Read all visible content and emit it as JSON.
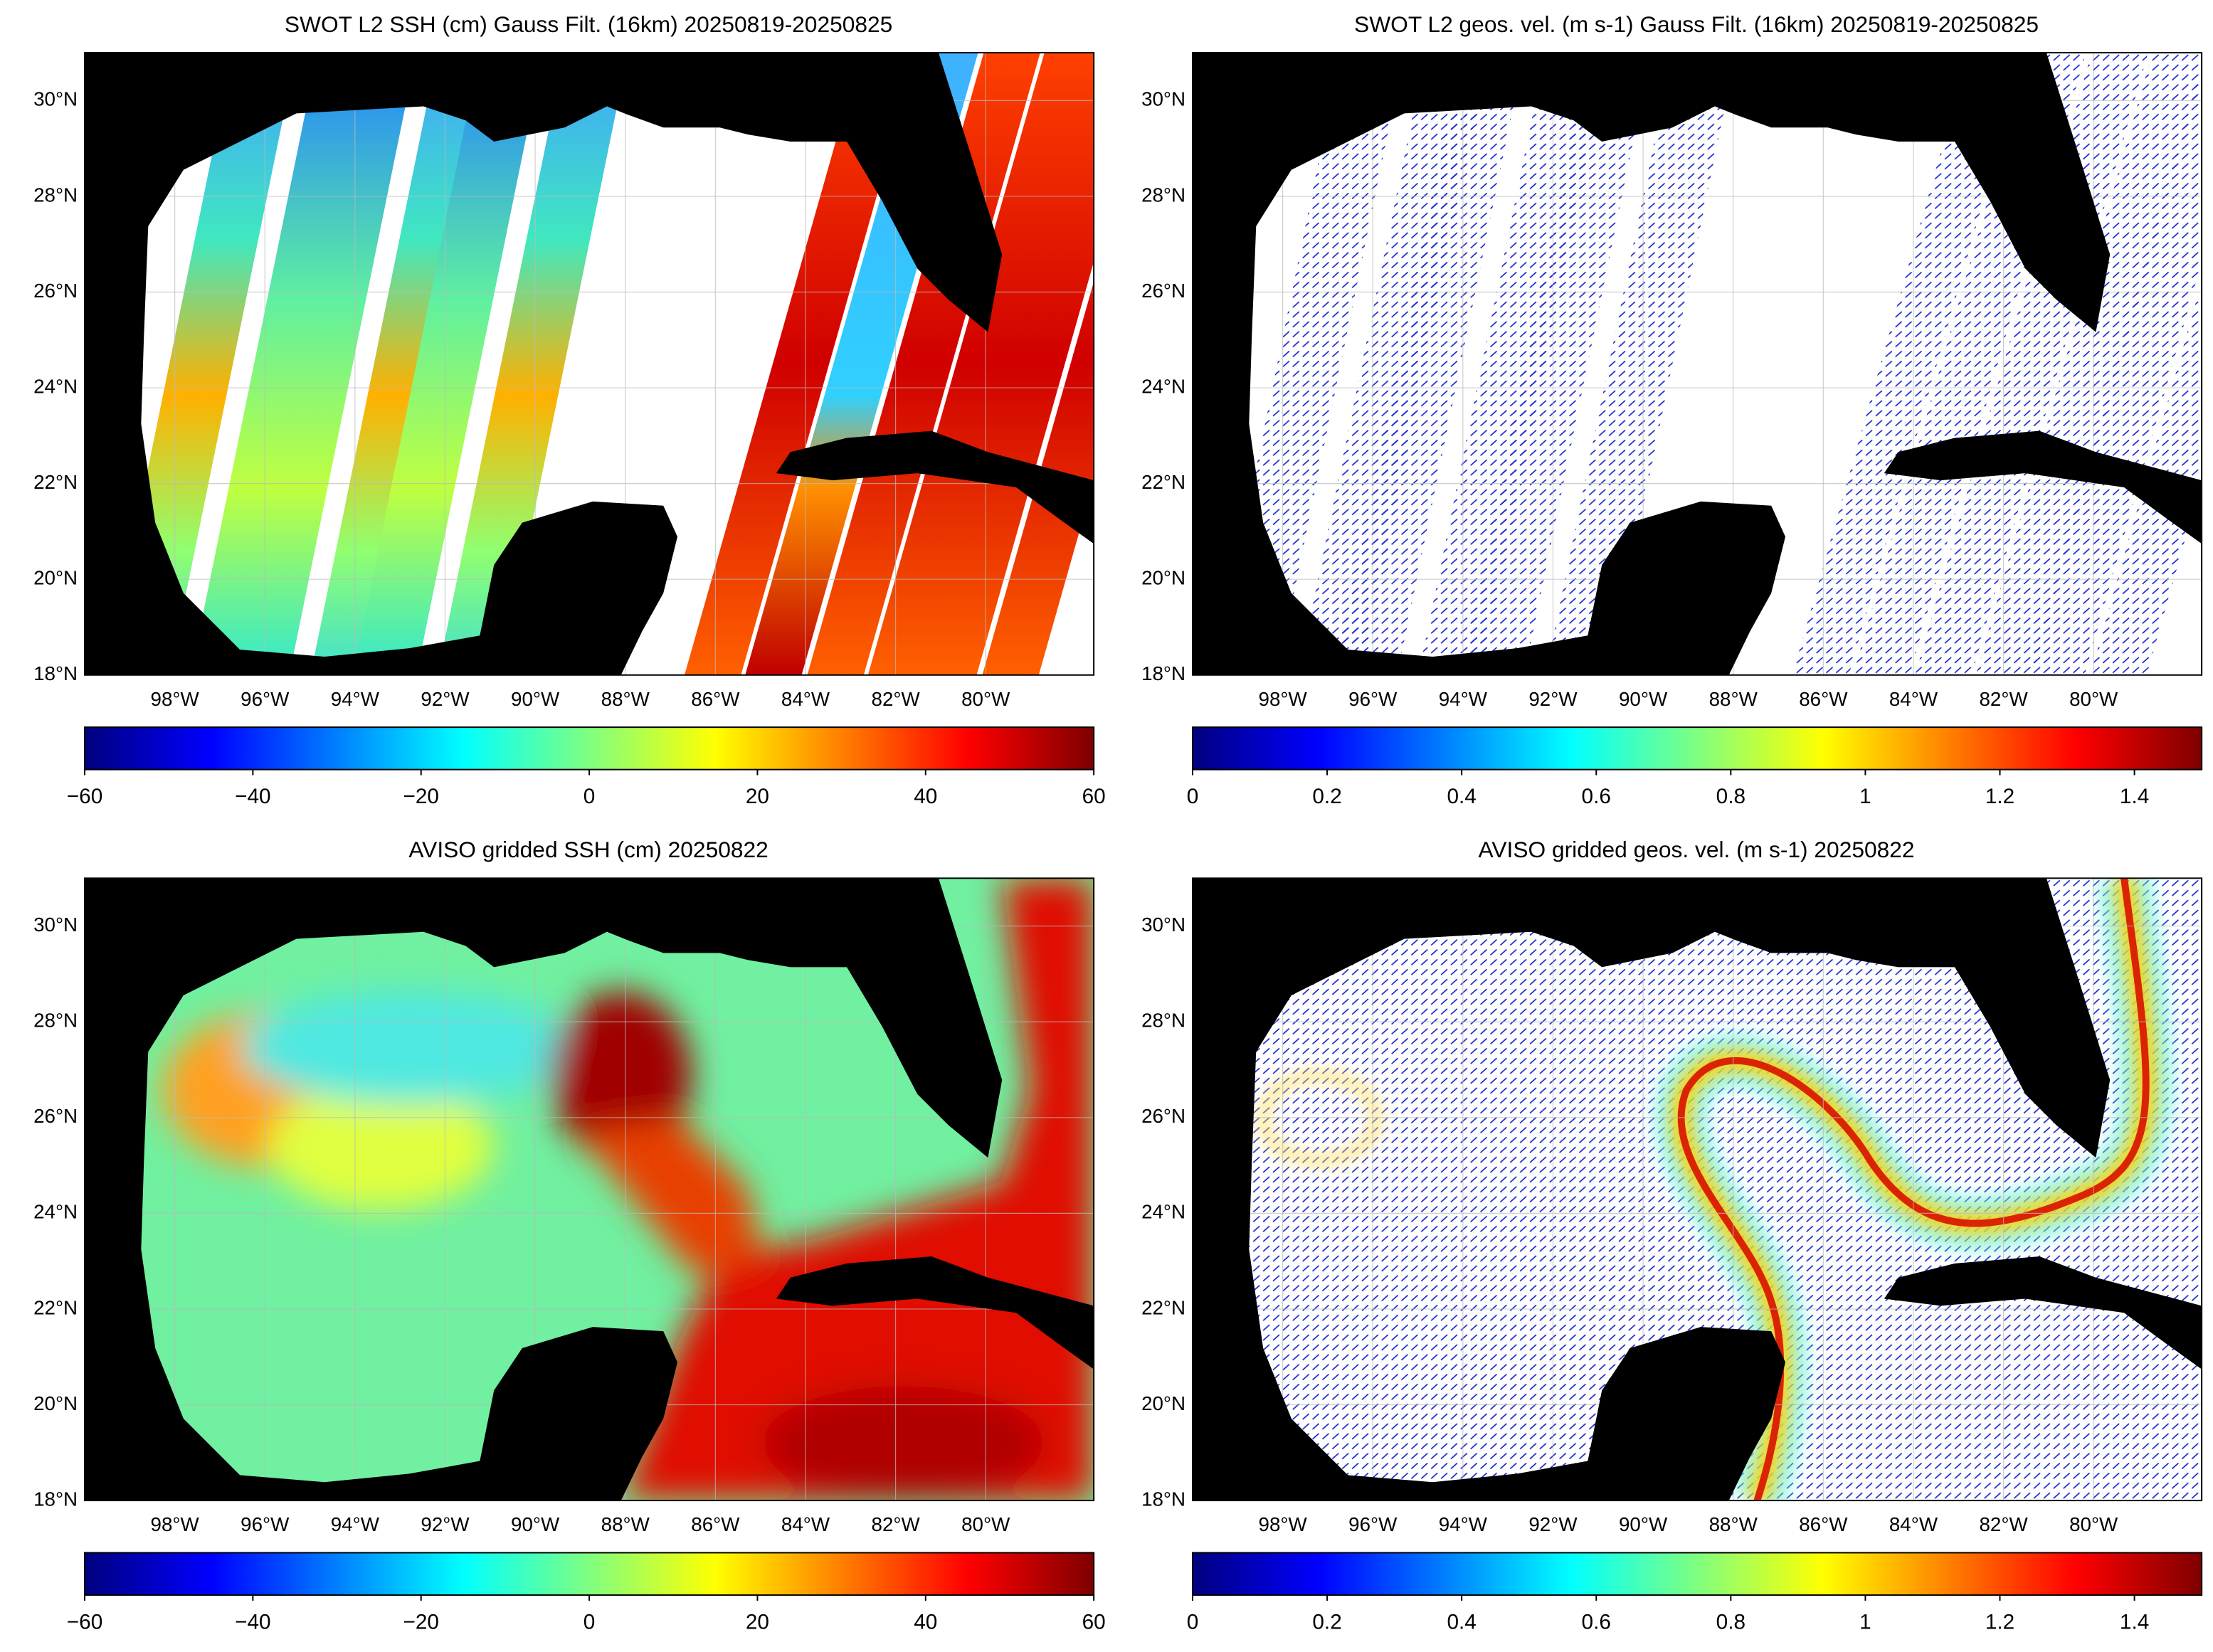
{
  "panels": [
    {
      "title": "SWOT L2 SSH (cm) Gauss Filt. (16km) 20250819-20250825",
      "map": {
        "lonlim": [
          -100,
          -77.6
        ],
        "latlim": [
          18,
          31
        ],
        "yticks": [
          {
            "value": 18,
            "label": "18°N"
          },
          {
            "value": 20,
            "label": "20°N"
          },
          {
            "value": 22,
            "label": "22°N"
          },
          {
            "value": 24,
            "label": "24°N"
          },
          {
            "value": 26,
            "label": "26°N"
          },
          {
            "value": 28,
            "label": "28°N"
          },
          {
            "value": 30,
            "label": "30°N"
          }
        ],
        "xticks": [
          {
            "value": -98,
            "label": "98°W"
          },
          {
            "value": -96,
            "label": "96°W"
          },
          {
            "value": -94,
            "label": "94°W"
          },
          {
            "value": -92,
            "label": "92°W"
          },
          {
            "value": -90,
            "label": "90°W"
          },
          {
            "value": -88,
            "label": "88°W"
          },
          {
            "value": -86,
            "label": "86°W"
          },
          {
            "value": -84,
            "label": "84°W"
          },
          {
            "value": -82,
            "label": "82°W"
          },
          {
            "value": -80,
            "label": "80°W"
          }
        ]
      },
      "colorbar": {
        "lim": [
          -60,
          60
        ],
        "ticks": [
          {
            "value": -60,
            "label": "−60"
          },
          {
            "value": -40,
            "label": "−40"
          },
          {
            "value": -20,
            "label": "−20"
          },
          0,
          20,
          40,
          60
        ]
      }
    },
    {
      "title": "SWOT L2 geos. vel. (m s-1) Gauss Filt. (16km) 20250819-20250825",
      "map": {
        "lonlim": [
          -100,
          -77.6
        ],
        "latlim": [
          18,
          31
        ],
        "yticks": [
          {
            "value": 18,
            "label": "18°N"
          },
          {
            "value": 20,
            "label": "20°N"
          },
          {
            "value": 22,
            "label": "22°N"
          },
          {
            "value": 24,
            "label": "24°N"
          },
          {
            "value": 26,
            "label": "26°N"
          },
          {
            "value": 28,
            "label": "28°N"
          },
          {
            "value": 30,
            "label": "30°N"
          }
        ],
        "xticks": [
          {
            "value": -98,
            "label": "98°W"
          },
          {
            "value": -96,
            "label": "96°W"
          },
          {
            "value": -94,
            "label": "94°W"
          },
          {
            "value": -92,
            "label": "92°W"
          },
          {
            "value": -90,
            "label": "90°W"
          },
          {
            "value": -88,
            "label": "88°W"
          },
          {
            "value": -86,
            "label": "86°W"
          },
          {
            "value": -84,
            "label": "84°W"
          },
          {
            "value": -82,
            "label": "82°W"
          },
          {
            "value": -80,
            "label": "80°W"
          }
        ]
      },
      "colorbar": {
        "lim": [
          0,
          1.5
        ],
        "ticks": [
          0,
          0.2,
          0.4,
          0.6,
          0.8,
          1,
          1.2,
          1.4
        ]
      }
    },
    {
      "title": "AVISO gridded SSH (cm) 20250822",
      "map": {
        "lonlim": [
          -100,
          -77.6
        ],
        "latlim": [
          18,
          31
        ],
        "yticks": [
          {
            "value": 18,
            "label": "18°N"
          },
          {
            "value": 20,
            "label": "20°N"
          },
          {
            "value": 22,
            "label": "22°N"
          },
          {
            "value": 24,
            "label": "24°N"
          },
          {
            "value": 26,
            "label": "26°N"
          },
          {
            "value": 28,
            "label": "28°N"
          },
          {
            "value": 30,
            "label": "30°N"
          }
        ],
        "xticks": [
          {
            "value": -98,
            "label": "98°W"
          },
          {
            "value": -96,
            "label": "96°W"
          },
          {
            "value": -94,
            "label": "94°W"
          },
          {
            "value": -92,
            "label": "92°W"
          },
          {
            "value": -90,
            "label": "90°W"
          },
          {
            "value": -88,
            "label": "88°W"
          },
          {
            "value": -86,
            "label": "86°W"
          },
          {
            "value": -84,
            "label": "84°W"
          },
          {
            "value": -82,
            "label": "82°W"
          },
          {
            "value": -80,
            "label": "80°W"
          }
        ]
      },
      "colorbar": {
        "lim": [
          -60,
          60
        ],
        "ticks": [
          {
            "value": -60,
            "label": "−60"
          },
          {
            "value": -40,
            "label": "−40"
          },
          {
            "value": -20,
            "label": "−20"
          },
          0,
          20,
          40,
          60
        ]
      }
    },
    {
      "title": "AVISO gridded geos. vel. (m s-1)  20250822",
      "map": {
        "lonlim": [
          -100,
          -77.6
        ],
        "latlim": [
          18,
          31
        ],
        "yticks": [
          {
            "value": 18,
            "label": "18°N"
          },
          {
            "value": 20,
            "label": "20°N"
          },
          {
            "value": 22,
            "label": "22°N"
          },
          {
            "value": 24,
            "label": "24°N"
          },
          {
            "value": 26,
            "label": "26°N"
          },
          {
            "value": 28,
            "label": "28°N"
          },
          {
            "value": 30,
            "label": "30°N"
          }
        ],
        "xticks": [
          {
            "value": -98,
            "label": "98°W"
          },
          {
            "value": -96,
            "label": "96°W"
          },
          {
            "value": -94,
            "label": "94°W"
          },
          {
            "value": -92,
            "label": "92°W"
          },
          {
            "value": -90,
            "label": "90°W"
          },
          {
            "value": -88,
            "label": "88°W"
          },
          {
            "value": -86,
            "label": "86°W"
          },
          {
            "value": -84,
            "label": "84°W"
          },
          {
            "value": -82,
            "label": "82°W"
          },
          {
            "value": -80,
            "label": "80°W"
          }
        ]
      },
      "colorbar": {
        "lim": [
          0,
          1.5
        ],
        "ticks": [
          0,
          0.2,
          0.4,
          0.6,
          0.8,
          1,
          1.2,
          1.4
        ]
      }
    }
  ]
}
